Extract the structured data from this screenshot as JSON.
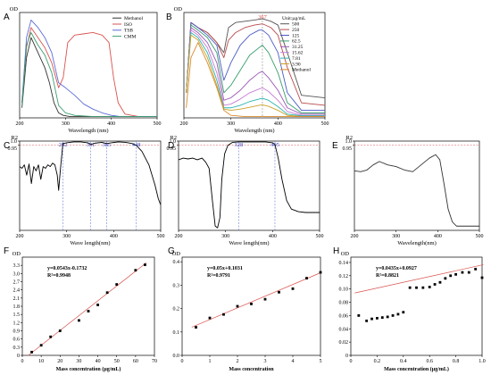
{
  "chart_data": [
    {
      "id": "A",
      "type": "line",
      "panel_label": "A",
      "ylabel": "OD",
      "xlabel": "Wavelength (nm)",
      "xlim": [
        200,
        500
      ],
      "ylim": [
        0,
        4.2
      ],
      "x_ticks": [
        "200",
        "300",
        "400",
        "500"
      ],
      "legend_position": "top-right",
      "series": [
        {
          "name": "Methanol",
          "color": "#333333",
          "x": [
            205,
            215,
            225,
            240,
            255,
            265,
            275,
            285,
            295,
            310,
            330,
            360,
            400,
            450,
            500
          ],
          "values": [
            0.4,
            2.4,
            3.2,
            2.6,
            2.0,
            1.4,
            0.6,
            0.2,
            0.1,
            0.05,
            0.05,
            0.05,
            0.05,
            0.05,
            0.05
          ]
        },
        {
          "name": "ISO",
          "color": "#d9534f",
          "x": [
            205,
            215,
            225,
            240,
            255,
            270,
            285,
            295,
            305,
            320,
            340,
            360,
            380,
            395,
            405,
            415,
            430,
            460,
            500
          ],
          "values": [
            0.6,
            2.8,
            3.6,
            3.2,
            2.8,
            2.2,
            1.2,
            1.6,
            3.0,
            3.3,
            3.35,
            3.4,
            3.3,
            3.0,
            1.6,
            0.6,
            0.15,
            0.05,
            0.05
          ]
        },
        {
          "name": "TSB",
          "color": "#5b6bd6",
          "x": [
            205,
            215,
            225,
            240,
            255,
            270,
            285,
            300,
            320,
            340,
            360,
            380,
            400,
            420,
            440,
            470,
            500
          ],
          "values": [
            0.6,
            3.2,
            3.9,
            3.6,
            3.2,
            2.6,
            1.4,
            1.2,
            0.9,
            0.55,
            0.35,
            0.2,
            0.1,
            0.05,
            0.05,
            0.05,
            0.05
          ]
        },
        {
          "name": "CMM",
          "color": "#3a9e6e",
          "x": [
            205,
            215,
            225,
            240,
            255,
            270,
            285,
            300,
            320,
            360,
            400,
            450,
            500
          ],
          "values": [
            0.5,
            2.9,
            3.4,
            2.9,
            2.5,
            1.8,
            0.5,
            0.2,
            0.1,
            0.05,
            0.05,
            0.05,
            0.05
          ]
        }
      ]
    },
    {
      "id": "B",
      "type": "line",
      "panel_label": "B",
      "ylabel": "OD",
      "xlabel": "Wavelength (nm)",
      "xlim": [
        200,
        500
      ],
      "ylim": [
        0,
        4.2
      ],
      "x_ticks": [
        "200",
        "300",
        "400",
        "500"
      ],
      "legend_title": "Unit:µg/mL",
      "legend_position": "top-right",
      "peak_label": "367",
      "peak_x": 367,
      "series": [
        {
          "name": "500",
          "color": "#555555",
          "x": [
            205,
            215,
            230,
            250,
            270,
            285,
            295,
            310,
            330,
            350,
            367,
            385,
            400,
            420,
            450,
            500
          ],
          "values": [
            1.0,
            3.8,
            3.6,
            3.4,
            3.0,
            2.6,
            3.6,
            3.8,
            3.85,
            3.9,
            3.95,
            3.85,
            3.7,
            2.6,
            0.9,
            0.8
          ]
        },
        {
          "name": "250",
          "color": "#b94a4a",
          "x": [
            205,
            215,
            230,
            250,
            270,
            285,
            295,
            310,
            330,
            350,
            367,
            385,
            400,
            420,
            450,
            500
          ],
          "values": [
            1.0,
            3.8,
            3.6,
            3.4,
            3.0,
            2.4,
            3.1,
            3.4,
            3.6,
            3.7,
            3.75,
            3.6,
            3.3,
            2.0,
            0.6,
            0.5
          ]
        },
        {
          "name": "125",
          "color": "#4a5ac4",
          "x": [
            205,
            215,
            230,
            250,
            270,
            285,
            300,
            320,
            340,
            360,
            367,
            380,
            400,
            420,
            450,
            500
          ],
          "values": [
            1.0,
            3.8,
            3.6,
            3.3,
            2.9,
            1.5,
            2.2,
            2.9,
            3.3,
            3.5,
            3.5,
            3.3,
            2.6,
            1.0,
            0.3,
            0.3
          ]
        },
        {
          "name": "62.5",
          "color": "#3a9e6e",
          "x": [
            205,
            215,
            230,
            250,
            270,
            285,
            300,
            320,
            340,
            360,
            367,
            380,
            400,
            420,
            450,
            500
          ],
          "values": [
            1.0,
            3.7,
            3.5,
            3.2,
            2.6,
            1.0,
            1.3,
            1.9,
            2.5,
            2.8,
            2.9,
            2.6,
            1.8,
            0.6,
            0.2,
            0.2
          ]
        },
        {
          "name": "31.25",
          "color": "#9b59b6",
          "x": [
            205,
            215,
            230,
            250,
            270,
            285,
            300,
            320,
            340,
            360,
            367,
            380,
            400,
            420,
            450,
            500
          ],
          "values": [
            1.0,
            3.6,
            3.4,
            3.0,
            2.2,
            0.7,
            0.8,
            1.1,
            1.5,
            1.8,
            1.85,
            1.6,
            1.1,
            0.4,
            0.15,
            0.15
          ]
        },
        {
          "name": "15.62",
          "color": "#c77dd6",
          "x": [
            205,
            215,
            230,
            250,
            270,
            285,
            300,
            320,
            340,
            360,
            367,
            380,
            400,
            420,
            450,
            500
          ],
          "values": [
            1.0,
            3.5,
            3.3,
            2.8,
            1.8,
            0.5,
            0.55,
            0.75,
            1.0,
            1.15,
            1.2,
            1.05,
            0.7,
            0.25,
            0.1,
            0.1
          ]
        },
        {
          "name": "7.81",
          "color": "#2bb5b0",
          "x": [
            205,
            215,
            230,
            250,
            270,
            285,
            300,
            320,
            340,
            360,
            367,
            380,
            400,
            420,
            450,
            500
          ],
          "values": [
            1.0,
            3.4,
            3.2,
            2.6,
            1.5,
            0.4,
            0.4,
            0.5,
            0.65,
            0.75,
            0.78,
            0.7,
            0.45,
            0.15,
            0.08,
            0.08
          ]
        },
        {
          "name": "3.90",
          "color": "#c9a227",
          "x": [
            205,
            215,
            230,
            250,
            270,
            285,
            300,
            320,
            340,
            360,
            367,
            380,
            400,
            420,
            450,
            500
          ],
          "values": [
            1.0,
            3.3,
            3.1,
            2.4,
            1.3,
            0.35,
            0.3,
            0.35,
            0.42,
            0.5,
            0.52,
            0.46,
            0.3,
            0.1,
            0.05,
            0.05
          ]
        },
        {
          "name": "Methanol",
          "color": "#d98a2b",
          "x": [
            205,
            215,
            230,
            250,
            270,
            285,
            300,
            330,
            360,
            400,
            450,
            500
          ],
          "values": [
            0.4,
            2.4,
            3.0,
            2.2,
            1.2,
            0.3,
            0.1,
            0.05,
            0.05,
            0.05,
            0.05,
            0.05
          ]
        }
      ]
    },
    {
      "id": "C",
      "type": "line",
      "panel_label": "C",
      "ylabel": "R2",
      "xlabel": "Wave length(nm)",
      "xlim": [
        200,
        500
      ],
      "ylim": [
        -0.05,
        1.0
      ],
      "x_ticks": [
        "200",
        "300",
        "400",
        "500"
      ],
      "y_ticks": [
        "1.0",
        "0.95"
      ],
      "threshold": 0.95,
      "threshold_label": "0.95",
      "vlines": [
        {
          "x": 292,
          "label": "292"
        },
        {
          "x": 351,
          "label": "351"
        },
        {
          "x": 385,
          "label": "385"
        },
        {
          "x": 448,
          "label": "448"
        }
      ],
      "series": [
        {
          "name": "",
          "color": "#000000",
          "x": [
            200,
            205,
            210,
            215,
            220,
            225,
            230,
            235,
            240,
            245,
            250,
            255,
            260,
            265,
            270,
            275,
            280,
            283,
            286,
            289,
            292,
            300,
            315,
            330,
            345,
            351,
            360,
            375,
            385,
            395,
            410,
            425,
            440,
            448,
            460,
            475,
            488,
            495,
            500
          ],
          "values": [
            0.7,
            0.68,
            0.72,
            0.6,
            0.73,
            0.5,
            0.7,
            0.65,
            0.72,
            0.55,
            0.7,
            0.68,
            0.72,
            0.7,
            0.74,
            0.72,
            0.6,
            0.42,
            0.62,
            0.8,
            0.97,
            0.98,
            0.99,
            0.99,
            0.98,
            0.96,
            0.975,
            0.985,
            0.97,
            0.98,
            0.99,
            0.985,
            0.97,
            0.95,
            0.88,
            0.72,
            0.48,
            0.32,
            0.25
          ]
        }
      ]
    },
    {
      "id": "D",
      "type": "line",
      "panel_label": "D",
      "ylabel": "R2",
      "xlabel": "Wave length(nm)",
      "xlim": [
        200,
        500
      ],
      "ylim": [
        -0.05,
        1.0
      ],
      "x_ticks": [
        "200",
        "300",
        "400",
        "500"
      ],
      "y_ticks": [
        "1.0",
        "0.95"
      ],
      "threshold": 0.95,
      "threshold_label": "0.95",
      "vlines": [
        {
          "x": 328,
          "label": "328"
        },
        {
          "x": 405,
          "label": "405"
        }
      ],
      "series": [
        {
          "name": "",
          "color": "#000000",
          "x": [
            200,
            210,
            220,
            230,
            240,
            250,
            258,
            265,
            272,
            278,
            283,
            288,
            292,
            298,
            305,
            315,
            328,
            345,
            365,
            385,
            400,
            405,
            412,
            420,
            430,
            440,
            455,
            470,
            485,
            500
          ],
          "values": [
            0.78,
            0.8,
            0.79,
            0.8,
            0.78,
            0.8,
            0.75,
            0.68,
            0.3,
            0.0,
            -0.02,
            0.1,
            0.55,
            0.85,
            0.95,
            0.985,
            0.99,
            0.99,
            0.99,
            0.99,
            0.98,
            0.96,
            0.8,
            0.55,
            0.3,
            0.2,
            0.17,
            0.16,
            0.16,
            0.16
          ]
        }
      ]
    },
    {
      "id": "E",
      "type": "line",
      "panel_label": "E",
      "ylabel": "R2",
      "xlabel": "Wavelength(nm)",
      "xlim": [
        200,
        500
      ],
      "ylim": [
        -0.05,
        1.0
      ],
      "x_ticks": [
        "200",
        "300",
        "400",
        "500"
      ],
      "y_ticks": [
        "1.0",
        "0.95"
      ],
      "threshold": 0.95,
      "threshold_label": "0.95",
      "series": [
        {
          "name": "",
          "color": "#333333",
          "x": [
            200,
            215,
            230,
            245,
            260,
            280,
            300,
            320,
            340,
            360,
            380,
            395,
            405,
            415,
            425,
            435,
            445,
            455,
            470,
            485,
            500
          ],
          "values": [
            0.65,
            0.64,
            0.66,
            0.72,
            0.76,
            0.72,
            0.7,
            0.66,
            0.64,
            0.72,
            0.8,
            0.84,
            0.78,
            0.5,
            0.2,
            0.05,
            0.0,
            0.0,
            0.0,
            0.0,
            0.0
          ]
        }
      ]
    },
    {
      "id": "F",
      "type": "scatter",
      "panel_label": "F",
      "ylabel": "OD",
      "xlabel": "Mass concentration (µg/mL)",
      "xlim": [
        0,
        70
      ],
      "ylim": [
        0,
        3.6
      ],
      "x_ticks": [
        "0",
        "10",
        "20",
        "30",
        "40",
        "50",
        "60",
        "70"
      ],
      "y_ticks": [
        "0",
        "0.3",
        "0.6",
        "0.9",
        "1.2",
        "1.5",
        "1.8",
        "2.1",
        "2.4",
        "2.7",
        "3.0",
        "3.3"
      ],
      "equation": "y=0.0543x-0.1732",
      "r2": "R²=0.9948",
      "fit": {
        "slope": 0.0543,
        "intercept": -0.1732
      },
      "x": [
        5,
        10,
        15,
        20,
        30,
        35,
        40,
        45,
        50,
        60,
        65
      ],
      "values": [
        0.12,
        0.37,
        0.68,
        0.9,
        1.28,
        1.62,
        1.85,
        2.3,
        2.6,
        3.12,
        3.32
      ]
    },
    {
      "id": "G",
      "type": "scatter",
      "panel_label": "G",
      "ylabel": "OD",
      "xlabel": "Mass concentration",
      "xlim": [
        0,
        5
      ],
      "ylim": [
        0,
        0.42
      ],
      "x_ticks": [
        "0",
        "1",
        "2",
        "3",
        "4",
        "5"
      ],
      "y_ticks": [
        "0.0",
        "0.1",
        "0.2",
        "0.3",
        "0.4"
      ],
      "equation": "y=0.05x+0.1031",
      "r2": "R²=0.9791",
      "fit": {
        "slope": 0.05,
        "intercept": 0.1031
      },
      "x": [
        0.5,
        1.0,
        1.5,
        2.0,
        2.5,
        3.0,
        3.5,
        4.0,
        4.5,
        5.0
      ],
      "values": [
        0.12,
        0.16,
        0.175,
        0.21,
        0.22,
        0.24,
        0.27,
        0.285,
        0.33,
        0.355
      ]
    },
    {
      "id": "H",
      "type": "scatter",
      "panel_label": "H",
      "ylabel": "OD",
      "xlabel": "Mass concentration (µg/mL)",
      "xlim": [
        0,
        1.0
      ],
      "ylim": [
        0,
        0.148
      ],
      "x_ticks": [
        "0",
        "0.2",
        "0.4",
        "0.6",
        "0.8",
        "1.0"
      ],
      "y_ticks": [
        "0",
        "0.02",
        "0.04",
        "0.06",
        "0.08",
        "0.10",
        "0.12",
        "0.14"
      ],
      "equation": "y=0.0435x+0.0927",
      "r2": "R²=0.8821",
      "fit": {
        "slope": 0.0435,
        "intercept": 0.0927
      },
      "x": [
        0.06,
        0.12,
        0.16,
        0.2,
        0.24,
        0.28,
        0.32,
        0.36,
        0.4,
        0.45,
        0.5,
        0.55,
        0.6,
        0.64,
        0.68,
        0.72,
        0.76,
        0.8,
        0.85,
        0.9,
        0.95,
        1.0
      ],
      "values": [
        0.06,
        0.052,
        0.055,
        0.056,
        0.057,
        0.058,
        0.06,
        0.062,
        0.065,
        0.102,
        0.102,
        0.102,
        0.103,
        0.107,
        0.11,
        0.116,
        0.12,
        0.122,
        0.125,
        0.125,
        0.13,
        0.117
      ]
    }
  ]
}
